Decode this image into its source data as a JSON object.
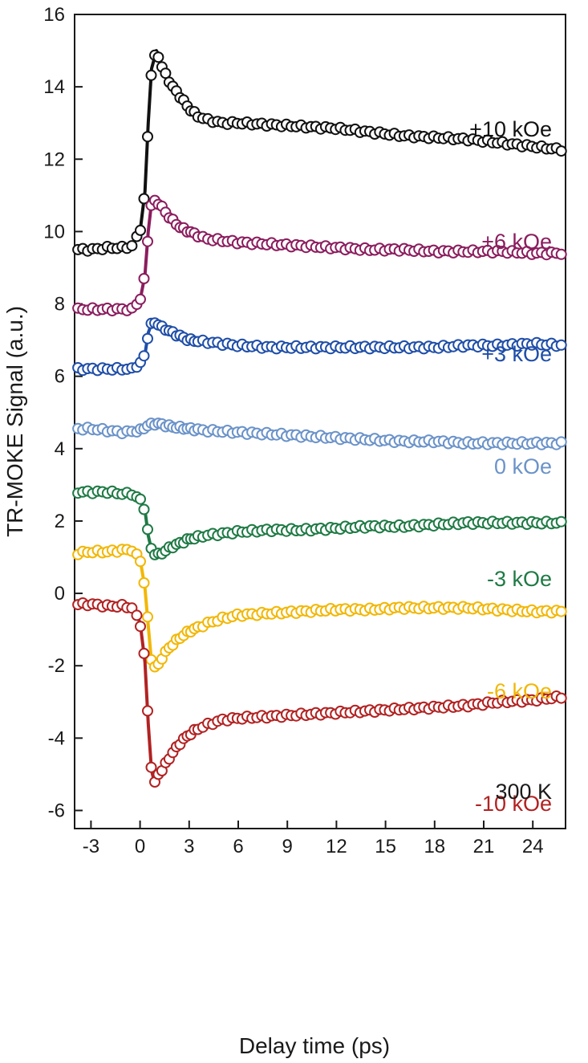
{
  "chart_data": {
    "type": "line",
    "title": "",
    "xlabel": "Delay time (ps)",
    "ylabel": "TR-MOKE Signal (a.u.)",
    "xlim": [
      -4,
      26
    ],
    "ylim": [
      -6.5,
      16
    ],
    "x_ticks": [
      -3,
      0,
      3,
      6,
      9,
      12,
      15,
      18,
      21,
      24
    ],
    "y_ticks": [
      -6,
      -4,
      -2,
      0,
      2,
      4,
      6,
      8,
      10,
      12,
      14,
      16
    ],
    "grid": false,
    "legend": "none",
    "annotation": "300 K",
    "series": [
      {
        "name": "+10 kOe",
        "color": "#111111",
        "x": [
          -4,
          -3,
          -2,
          -1,
          -0.5,
          0,
          0.3,
          0.5,
          0.7,
          1.0,
          1.3,
          1.6,
          2.0,
          2.5,
          3.0,
          3.5,
          4.0,
          5,
          6,
          8,
          10,
          12,
          14,
          16,
          18,
          20,
          22,
          24,
          26
        ],
        "y": [
          9.5,
          9.5,
          9.55,
          9.55,
          9.6,
          10.0,
          11.1,
          13.0,
          14.5,
          15.0,
          14.6,
          14.3,
          14.0,
          13.7,
          13.4,
          13.2,
          13.1,
          13.0,
          13.0,
          12.95,
          12.9,
          12.85,
          12.75,
          12.65,
          12.6,
          12.55,
          12.45,
          12.35,
          12.25
        ]
      },
      {
        "name": "+6 kOe",
        "color": "#8b1d5e",
        "x": [
          -4,
          -3,
          -2,
          -1,
          -0.5,
          0,
          0.3,
          0.5,
          0.7,
          1.0,
          1.3,
          1.6,
          2.0,
          2.5,
          3.0,
          3.5,
          4.0,
          5,
          6,
          8,
          10,
          12,
          14,
          16,
          18,
          20,
          22,
          24,
          26
        ],
        "y": [
          7.85,
          7.85,
          7.85,
          7.85,
          7.85,
          8.1,
          8.8,
          10.0,
          10.8,
          10.85,
          10.7,
          10.5,
          10.3,
          10.1,
          10.0,
          9.9,
          9.8,
          9.75,
          9.7,
          9.65,
          9.6,
          9.55,
          9.5,
          9.5,
          9.45,
          9.45,
          9.45,
          9.4,
          9.4
        ]
      },
      {
        "name": "+3 kOe",
        "color": "#1f4ea8",
        "x": [
          -4,
          -3,
          -2,
          -1,
          -0.5,
          0,
          0.3,
          0.5,
          0.7,
          1.0,
          1.3,
          1.6,
          2.0,
          2.5,
          3.0,
          4.0,
          5,
          6,
          8,
          10,
          12,
          14,
          16,
          18,
          20,
          22,
          24,
          26
        ],
        "y": [
          6.2,
          6.2,
          6.2,
          6.2,
          6.2,
          6.35,
          6.6,
          7.2,
          7.45,
          7.5,
          7.35,
          7.3,
          7.2,
          7.1,
          7.0,
          6.95,
          6.9,
          6.85,
          6.8,
          6.8,
          6.8,
          6.8,
          6.8,
          6.8,
          6.85,
          6.85,
          6.9,
          6.85
        ]
      },
      {
        "name": "0 kOe",
        "color": "#6b93c9",
        "x": [
          -4,
          -3,
          -2,
          -1,
          0,
          0.5,
          1.0,
          1.5,
          2,
          3,
          4,
          6,
          8,
          10,
          12,
          14,
          16,
          18,
          20,
          22,
          24,
          26
        ],
        "y": [
          4.55,
          4.55,
          4.5,
          4.45,
          4.5,
          4.65,
          4.7,
          4.65,
          4.6,
          4.55,
          4.5,
          4.45,
          4.4,
          4.35,
          4.3,
          4.25,
          4.2,
          4.2,
          4.15,
          4.15,
          4.15,
          4.15
        ]
      },
      {
        "name": "-3 kOe",
        "color": "#1f7a45",
        "x": [
          -4,
          -3,
          -2,
          -1,
          -0.5,
          0,
          0.3,
          0.5,
          0.7,
          1.0,
          1.3,
          1.6,
          2.0,
          2.5,
          3.0,
          4.0,
          5,
          6,
          8,
          10,
          12,
          14,
          16,
          18,
          20,
          22,
          24,
          26
        ],
        "y": [
          2.8,
          2.8,
          2.8,
          2.75,
          2.75,
          2.6,
          2.3,
          1.6,
          1.2,
          1.05,
          1.1,
          1.2,
          1.3,
          1.4,
          1.5,
          1.6,
          1.65,
          1.7,
          1.75,
          1.75,
          1.8,
          1.85,
          1.85,
          1.9,
          1.95,
          1.95,
          1.95,
          1.95
        ]
      },
      {
        "name": "-6 kOe",
        "color": "#f2b705",
        "x": [
          -4,
          -3,
          -2,
          -1,
          -0.5,
          0,
          0.3,
          0.5,
          0.7,
          1.0,
          1.3,
          1.6,
          2.0,
          2.5,
          3.0,
          3.5,
          4.0,
          5,
          6,
          8,
          10,
          12,
          14,
          16,
          18,
          20,
          22,
          24,
          26
        ],
        "y": [
          1.1,
          1.15,
          1.15,
          1.2,
          1.2,
          0.95,
          0.15,
          -0.9,
          -1.9,
          -2.1,
          -1.8,
          -1.6,
          -1.4,
          -1.2,
          -1.05,
          -0.95,
          -0.85,
          -0.7,
          -0.6,
          -0.55,
          -0.5,
          -0.45,
          -0.45,
          -0.4,
          -0.4,
          -0.4,
          -0.45,
          -0.5,
          -0.5
        ]
      },
      {
        "name": "-10 kOe",
        "color": "#b22222",
        "x": [
          -4,
          -3,
          -2,
          -1,
          -0.5,
          0,
          0.3,
          0.5,
          0.7,
          0.9,
          1.1,
          1.4,
          1.7,
          2.0,
          2.5,
          3.0,
          3.5,
          4.0,
          5,
          6,
          8,
          10,
          12,
          14,
          16,
          18,
          20,
          22,
          24,
          26
        ],
        "y": [
          -0.3,
          -0.3,
          -0.35,
          -0.35,
          -0.4,
          -0.8,
          -1.9,
          -3.6,
          -4.9,
          -5.25,
          -5.0,
          -4.85,
          -4.6,
          -4.4,
          -4.1,
          -3.9,
          -3.75,
          -3.65,
          -3.5,
          -3.45,
          -3.4,
          -3.35,
          -3.3,
          -3.25,
          -3.2,
          -3.15,
          -3.1,
          -3.0,
          -2.95,
          -2.85
        ]
      }
    ]
  }
}
